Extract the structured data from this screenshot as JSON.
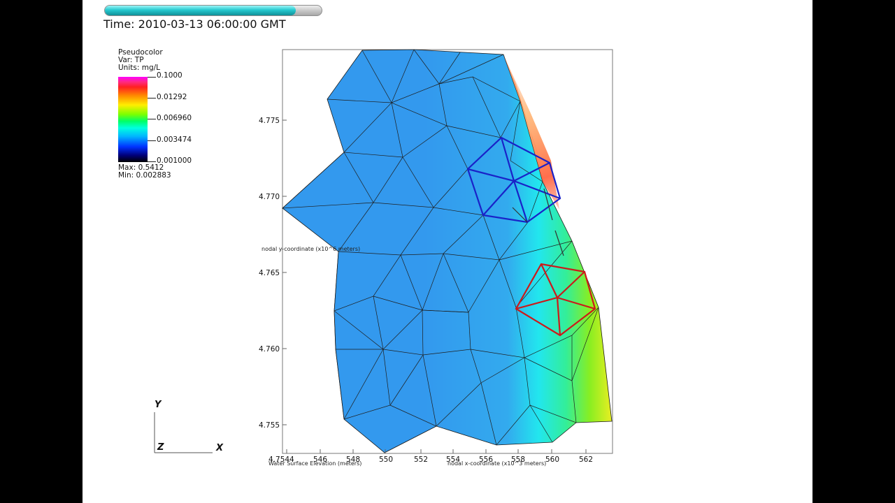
{
  "time": {
    "label": "Time: 2010-03-13 06:00:00 GMT",
    "progress": 0.88
  },
  "legend": {
    "title": "Pseudocolor",
    "var": "Var: TP",
    "units": "Units: mg/L",
    "ticks": [
      "0.1000",
      "0.01292",
      "0.006960",
      "0.003474",
      "0.001000"
    ],
    "max": "Max:  0.5412",
    "min": "Min:  0.002883"
  },
  "axes": {
    "y_ticks": [
      "4.775",
      "4.770",
      "4.765",
      "4.760",
      "4.755"
    ],
    "x_ticks": [
      "0544",
      "546",
      "548",
      "550",
      "552",
      "554",
      "556",
      "558",
      "560",
      "562"
    ],
    "origin_label": "4.7544",
    "y_title": "nodal y-coordinate (x10^6 meters)",
    "x_title": "nodal x-coordinate (x10^3 meters)",
    "bottom_label": "Water Surface Elevation (meters)"
  },
  "triad": {
    "y": "Y",
    "z": "Z",
    "x": "X"
  },
  "colors": {
    "mesh_low": "#3399ee",
    "mesh_high": "#ff6a20",
    "blue_outline": "#1a22c8",
    "red_outline": "#cc1a1a"
  }
}
